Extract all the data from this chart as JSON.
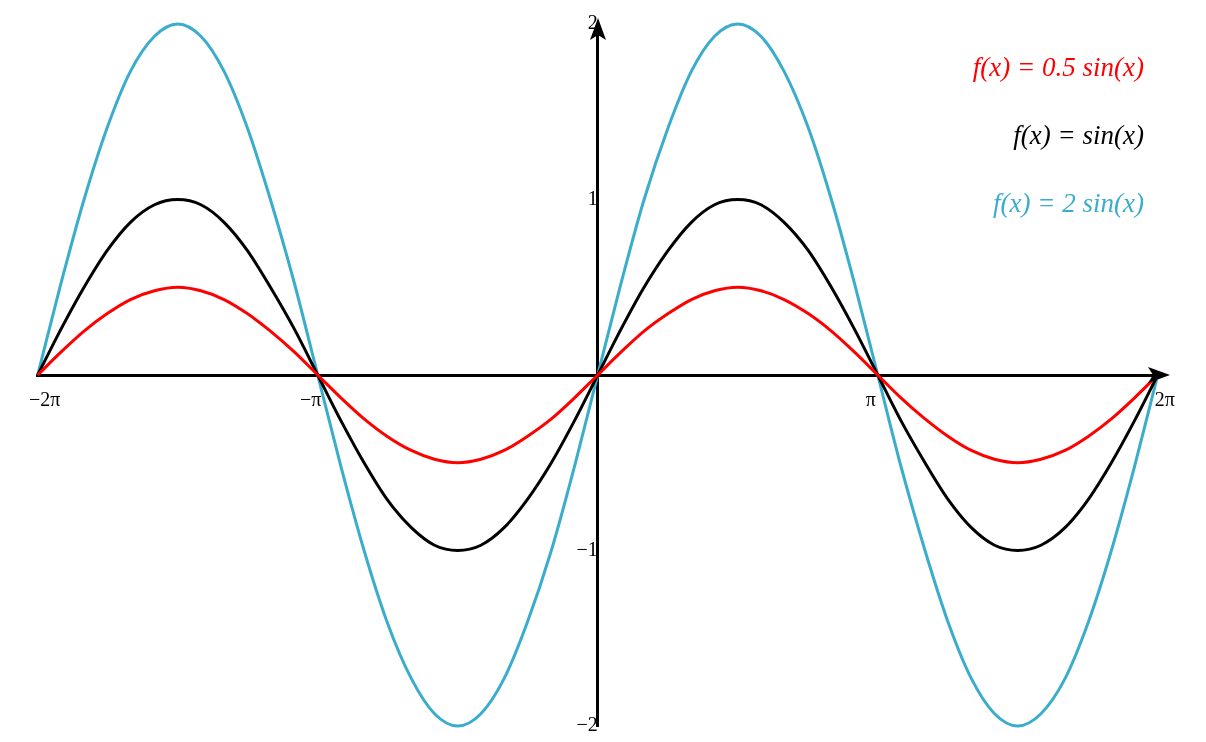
{
  "chart_data": {
    "type": "line",
    "x": [
      -6.28,
      -6.02,
      -5.76,
      -5.5,
      -5.24,
      -4.97,
      -4.71,
      -4.45,
      -4.19,
      -3.93,
      -3.67,
      -3.4,
      -3.14,
      -2.88,
      -2.62,
      -2.36,
      -2.09,
      -1.83,
      -1.57,
      -1.31,
      -1.05,
      -0.79,
      -0.52,
      -0.26,
      0,
      0.26,
      0.52,
      0.79,
      1.05,
      1.31,
      1.57,
      1.83,
      2.09,
      2.36,
      2.62,
      2.88,
      3.14,
      3.4,
      3.67,
      3.93,
      4.19,
      4.45,
      4.71,
      4.97,
      5.24,
      5.5,
      5.76,
      6.02,
      6.28
    ],
    "series": [
      {
        "name": "f(x) = 0.5 sin(x)",
        "color": "#ff0000",
        "values": [
          0,
          0.13,
          0.25,
          0.35,
          0.43,
          0.48,
          0.5,
          0.48,
          0.43,
          0.35,
          0.25,
          0.13,
          0,
          -0.13,
          -0.25,
          -0.35,
          -0.43,
          -0.48,
          -0.5,
          -0.48,
          -0.43,
          -0.35,
          -0.25,
          -0.13,
          0,
          0.13,
          0.25,
          0.35,
          0.43,
          0.48,
          0.5,
          0.48,
          0.43,
          0.35,
          0.25,
          0.13,
          0,
          -0.13,
          -0.25,
          -0.35,
          -0.43,
          -0.48,
          -0.5,
          -0.48,
          -0.43,
          -0.35,
          -0.25,
          -0.13,
          0
        ]
      },
      {
        "name": "f(x) = sin(x)",
        "color": "#000000",
        "values": [
          0,
          0.26,
          0.5,
          0.71,
          0.87,
          0.97,
          1,
          0.97,
          0.87,
          0.71,
          0.5,
          0.26,
          0,
          -0.26,
          -0.5,
          -0.71,
          -0.87,
          -0.97,
          -1,
          -0.97,
          -0.87,
          -0.71,
          -0.5,
          -0.26,
          0,
          0.26,
          0.5,
          0.71,
          0.87,
          0.97,
          1,
          0.97,
          0.87,
          0.71,
          0.5,
          0.26,
          0,
          -0.26,
          -0.5,
          -0.71,
          -0.87,
          -0.97,
          -1,
          -0.97,
          -0.87,
          -0.71,
          -0.5,
          -0.26,
          0
        ]
      },
      {
        "name": "f(x) = 2 sin(x)",
        "color": "#3aaccc",
        "values": [
          0,
          0.52,
          1,
          1.41,
          1.73,
          1.93,
          2,
          1.93,
          1.73,
          1.41,
          1,
          0.52,
          0,
          -0.52,
          -1,
          -1.41,
          -1.73,
          -1.93,
          -2,
          -1.93,
          -1.73,
          -1.41,
          -1,
          -0.52,
          0,
          0.52,
          1,
          1.41,
          1.73,
          1.93,
          2,
          1.93,
          1.73,
          1.41,
          1,
          0.52,
          0,
          -0.52,
          -1,
          -1.41,
          -1.73,
          -1.93,
          -2,
          -1.93,
          -1.73,
          -1.41,
          -1,
          -0.52,
          0
        ]
      }
    ],
    "xlim": [
      -6.28,
      6.35
    ],
    "ylim": [
      -2,
      2
    ],
    "xticks": [
      {
        "value": -6.28,
        "label": "−2π"
      },
      {
        "value": -3.14,
        "label": "−π"
      },
      {
        "value": 3.14,
        "label": "π"
      },
      {
        "value": 6.28,
        "label": "2π"
      }
    ],
    "yticks": [
      -2,
      -1,
      1,
      2
    ],
    "grid": false,
    "legend": "top right",
    "marker": "none",
    "line_style": "solid"
  }
}
